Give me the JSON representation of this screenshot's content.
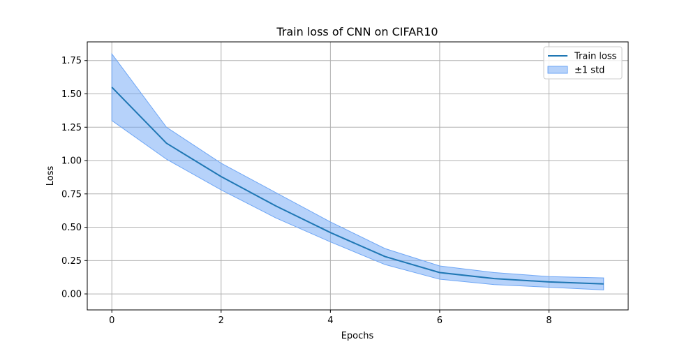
{
  "chart_data": {
    "type": "line",
    "title": "Train loss of CNN on CIFAR10",
    "xlabel": "Epochs",
    "ylabel": "Loss",
    "xlim": [
      -0.45,
      9.45
    ],
    "ylim": [
      -0.12,
      1.89
    ],
    "xticks": [
      0,
      2,
      4,
      6,
      8
    ],
    "xtick_labels": [
      "0",
      "2",
      "4",
      "6",
      "8"
    ],
    "yticks": [
      0,
      0.25,
      0.5,
      0.75,
      1.0,
      1.25,
      1.5,
      1.75
    ],
    "ytick_labels": [
      "0.00",
      "0.25",
      "0.50",
      "0.75",
      "1.00",
      "1.25",
      "1.50",
      "1.75"
    ],
    "grid": true,
    "legend_position": "top-right",
    "x": [
      0,
      1,
      2,
      3,
      4,
      5,
      6,
      7,
      8,
      9
    ],
    "series": [
      {
        "name": "Train loss",
        "kind": "line",
        "color": "#1f77b4",
        "values": [
          1.55,
          1.13,
          0.88,
          0.66,
          0.46,
          0.28,
          0.16,
          0.115,
          0.09,
          0.075
        ]
      },
      {
        "name": "±1 std",
        "kind": "band",
        "color": "#6ea6f5",
        "lower": [
          1.3,
          1.01,
          0.78,
          0.57,
          0.39,
          0.22,
          0.11,
          0.07,
          0.05,
          0.03
        ],
        "upper": [
          1.8,
          1.25,
          0.98,
          0.76,
          0.54,
          0.34,
          0.21,
          0.16,
          0.13,
          0.12
        ]
      }
    ]
  }
}
